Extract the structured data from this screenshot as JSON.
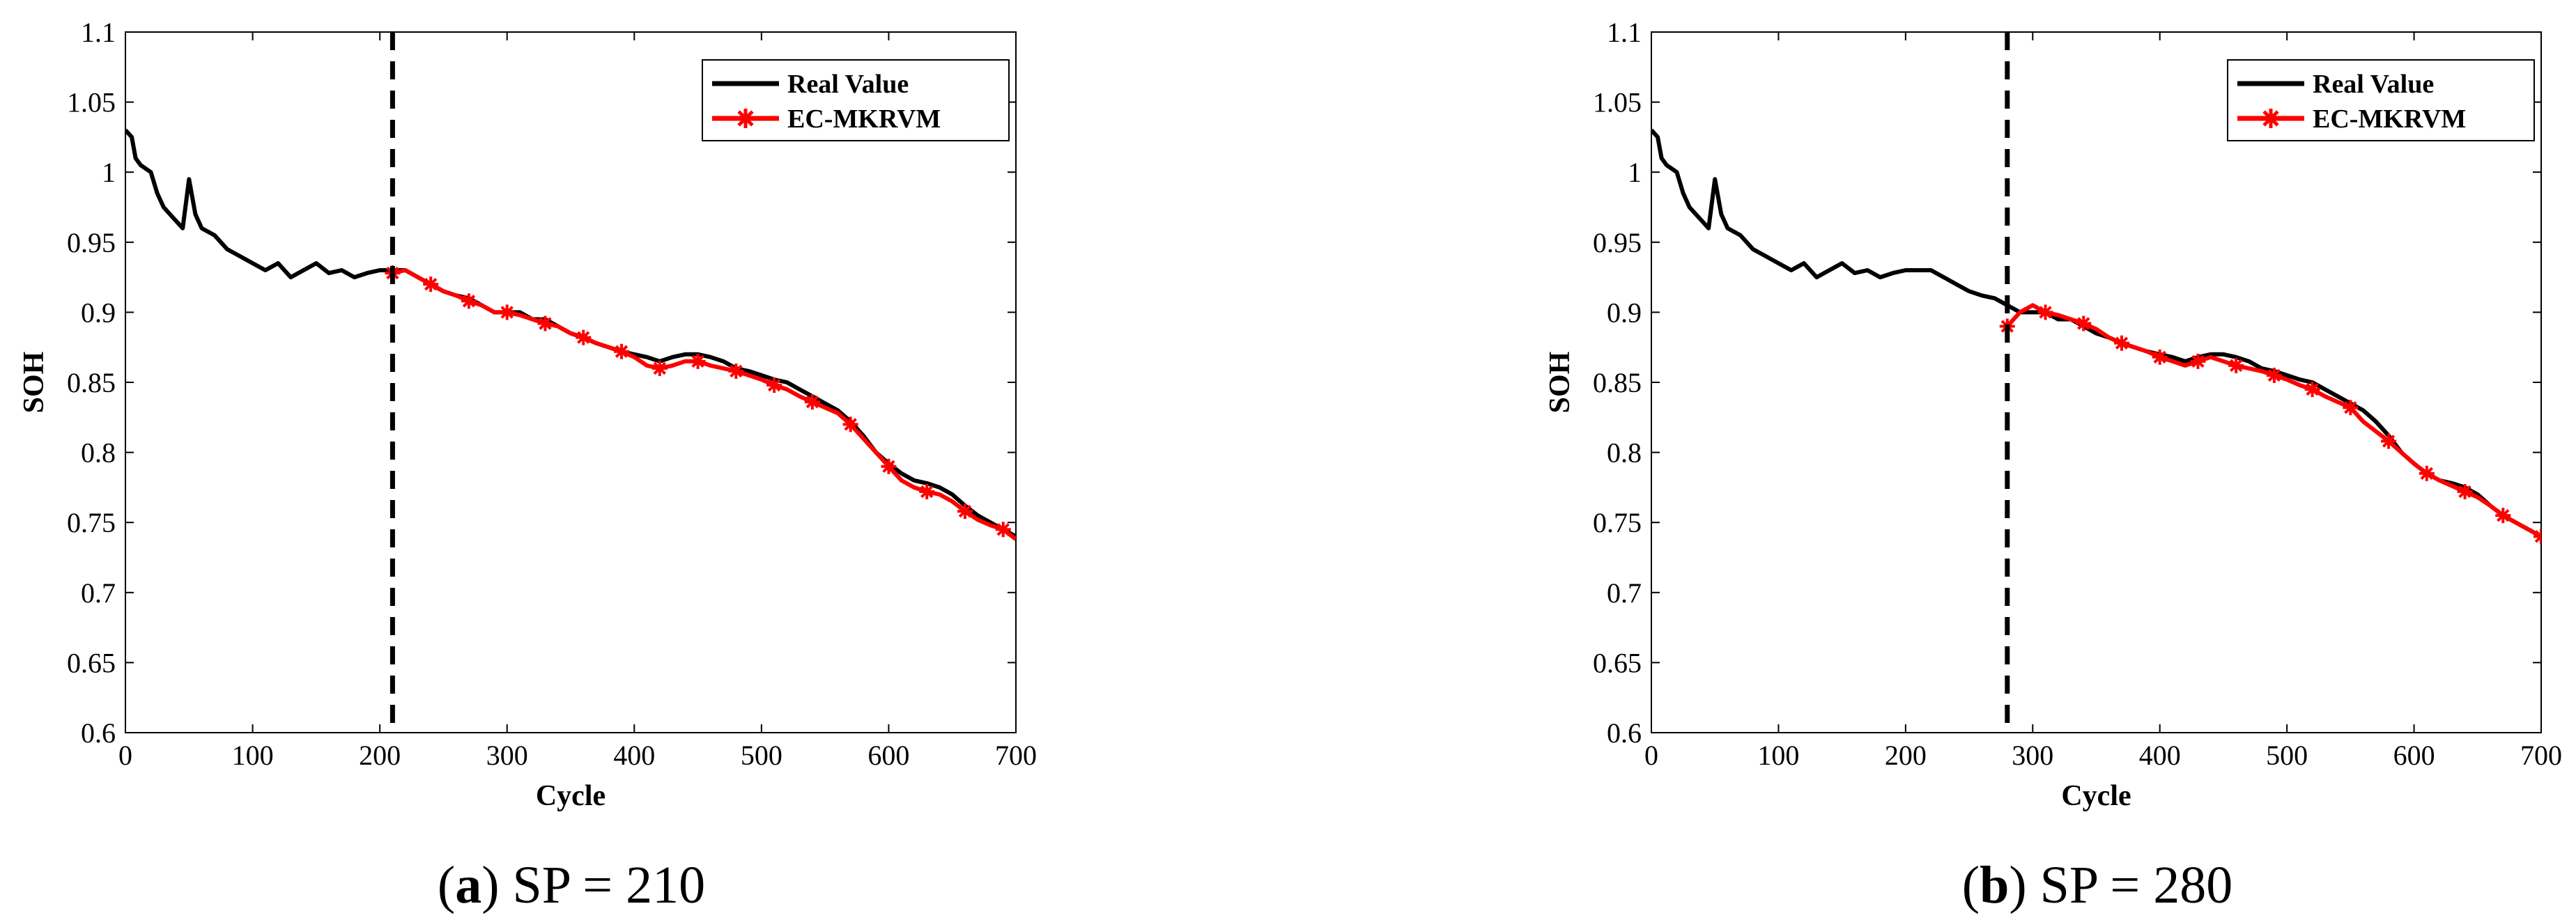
{
  "chart_data": [
    {
      "type": "line",
      "caption": {
        "open": "(",
        "letter": "a",
        "close": ")",
        "text": " SP = 210"
      },
      "xlabel": "Cycle",
      "ylabel": "SOH",
      "xlim": [
        0,
        700
      ],
      "ylim": [
        0.6,
        1.1
      ],
      "xticks": [
        "0",
        "100",
        "200",
        "300",
        "400",
        "500",
        "600",
        "700"
      ],
      "yticks": [
        "0.6",
        "0.65",
        "0.7",
        "0.75",
        "0.8",
        "0.85",
        "0.9",
        "0.95",
        "1",
        "1.05",
        "1.1"
      ],
      "start_point": 210,
      "legend": {
        "placement": "top-right",
        "entries": [
          "Real Value",
          "EC-MKRVM"
        ]
      },
      "series": [
        {
          "name": "Real Value",
          "color": "#000000",
          "x": [
            0,
            5,
            8,
            12,
            20,
            25,
            30,
            35,
            40,
            45,
            50,
            55,
            60,
            70,
            80,
            90,
            100,
            110,
            120,
            130,
            140,
            150,
            160,
            170,
            180,
            190,
            200,
            210,
            220,
            230,
            240,
            250,
            260,
            270,
            280,
            290,
            300,
            310,
            320,
            330,
            340,
            350,
            360,
            370,
            380,
            390,
            400,
            410,
            420,
            430,
            440,
            450,
            460,
            470,
            480,
            490,
            500,
            510,
            520,
            530,
            540,
            550,
            560,
            570,
            580,
            590,
            600,
            610,
            620,
            630,
            640,
            650,
            660,
            670,
            680,
            690,
            700
          ],
          "y": [
            1.03,
            1.025,
            1.01,
            1.005,
            1.0,
            0.985,
            0.975,
            0.97,
            0.965,
            0.96,
            0.995,
            0.97,
            0.96,
            0.955,
            0.945,
            0.94,
            0.935,
            0.93,
            0.935,
            0.925,
            0.93,
            0.935,
            0.928,
            0.93,
            0.925,
            0.928,
            0.93,
            0.93,
            0.93,
            0.925,
            0.92,
            0.915,
            0.912,
            0.91,
            0.905,
            0.9,
            0.9,
            0.9,
            0.895,
            0.895,
            0.89,
            0.885,
            0.882,
            0.878,
            0.875,
            0.872,
            0.87,
            0.868,
            0.865,
            0.868,
            0.87,
            0.87,
            0.868,
            0.865,
            0.86,
            0.858,
            0.855,
            0.852,
            0.85,
            0.845,
            0.84,
            0.835,
            0.83,
            0.822,
            0.812,
            0.8,
            0.792,
            0.785,
            0.78,
            0.778,
            0.775,
            0.77,
            0.762,
            0.755,
            0.75,
            0.745,
            0.74
          ]
        },
        {
          "name": "EC-MKRVM",
          "color": "#ff0000",
          "x": [
            210,
            220,
            230,
            240,
            250,
            260,
            270,
            280,
            290,
            300,
            310,
            320,
            330,
            340,
            350,
            360,
            370,
            380,
            390,
            400,
            410,
            420,
            430,
            440,
            450,
            460,
            470,
            480,
            490,
            500,
            510,
            520,
            530,
            540,
            550,
            560,
            570,
            580,
            590,
            600,
            610,
            620,
            630,
            640,
            650,
            660,
            670,
            680,
            690,
            700
          ],
          "y": [
            0.928,
            0.93,
            0.925,
            0.92,
            0.915,
            0.912,
            0.908,
            0.905,
            0.9,
            0.9,
            0.898,
            0.895,
            0.892,
            0.89,
            0.885,
            0.882,
            0.878,
            0.875,
            0.872,
            0.868,
            0.862,
            0.86,
            0.862,
            0.865,
            0.865,
            0.862,
            0.86,
            0.858,
            0.855,
            0.852,
            0.848,
            0.845,
            0.84,
            0.836,
            0.832,
            0.828,
            0.82,
            0.81,
            0.8,
            0.79,
            0.78,
            0.775,
            0.772,
            0.77,
            0.765,
            0.758,
            0.752,
            0.748,
            0.745,
            0.738
          ]
        }
      ]
    },
    {
      "type": "line",
      "caption": {
        "open": "(",
        "letter": "b",
        "close": ")",
        "text": " SP = 280"
      },
      "xlabel": "Cycle",
      "ylabel": "SOH",
      "xlim": [
        0,
        700
      ],
      "ylim": [
        0.6,
        1.1
      ],
      "xticks": [
        "0",
        "100",
        "200",
        "300",
        "400",
        "500",
        "600",
        "700"
      ],
      "yticks": [
        "0.6",
        "0.65",
        "0.7",
        "0.75",
        "0.8",
        "0.85",
        "0.9",
        "0.95",
        "1",
        "1.05",
        "1.1"
      ],
      "start_point": 280,
      "legend": {
        "placement": "top-right",
        "entries": [
          "Real Value",
          "EC-MKRVM"
        ]
      },
      "series": [
        {
          "name": "Real Value",
          "color": "#000000",
          "x": [
            0,
            5,
            8,
            12,
            20,
            25,
            30,
            35,
            40,
            45,
            50,
            55,
            60,
            70,
            80,
            90,
            100,
            110,
            120,
            130,
            140,
            150,
            160,
            170,
            180,
            190,
            200,
            210,
            220,
            230,
            240,
            250,
            260,
            270,
            280,
            290,
            300,
            310,
            320,
            330,
            340,
            350,
            360,
            370,
            380,
            390,
            400,
            410,
            420,
            430,
            440,
            450,
            460,
            470,
            480,
            490,
            500,
            510,
            520,
            530,
            540,
            550,
            560,
            570,
            580,
            590,
            600,
            610,
            620,
            630,
            640,
            650,
            660,
            670,
            680,
            690,
            700
          ],
          "y": [
            1.03,
            1.025,
            1.01,
            1.005,
            1.0,
            0.985,
            0.975,
            0.97,
            0.965,
            0.96,
            0.995,
            0.97,
            0.96,
            0.955,
            0.945,
            0.94,
            0.935,
            0.93,
            0.935,
            0.925,
            0.93,
            0.935,
            0.928,
            0.93,
            0.925,
            0.928,
            0.93,
            0.93,
            0.93,
            0.925,
            0.92,
            0.915,
            0.912,
            0.91,
            0.905,
            0.9,
            0.9,
            0.9,
            0.895,
            0.895,
            0.89,
            0.885,
            0.882,
            0.878,
            0.875,
            0.872,
            0.87,
            0.868,
            0.865,
            0.868,
            0.87,
            0.87,
            0.868,
            0.865,
            0.86,
            0.858,
            0.855,
            0.852,
            0.85,
            0.845,
            0.84,
            0.835,
            0.83,
            0.822,
            0.812,
            0.8,
            0.792,
            0.785,
            0.78,
            0.778,
            0.775,
            0.77,
            0.762,
            0.755,
            0.75,
            0.745,
            0.74
          ]
        },
        {
          "name": "EC-MKRVM",
          "color": "#ff0000",
          "x": [
            280,
            290,
            300,
            310,
            320,
            330,
            340,
            350,
            360,
            370,
            380,
            390,
            400,
            410,
            420,
            430,
            440,
            450,
            460,
            470,
            480,
            490,
            500,
            510,
            520,
            530,
            540,
            550,
            560,
            570,
            580,
            590,
            600,
            610,
            620,
            630,
            640,
            650,
            660,
            670,
            680,
            690,
            700
          ],
          "y": [
            0.89,
            0.9,
            0.905,
            0.9,
            0.898,
            0.895,
            0.892,
            0.888,
            0.882,
            0.878,
            0.875,
            0.872,
            0.868,
            0.865,
            0.862,
            0.865,
            0.868,
            0.865,
            0.862,
            0.86,
            0.858,
            0.855,
            0.852,
            0.848,
            0.845,
            0.84,
            0.836,
            0.832,
            0.822,
            0.815,
            0.808,
            0.8,
            0.792,
            0.785,
            0.78,
            0.776,
            0.772,
            0.768,
            0.762,
            0.755,
            0.75,
            0.745,
            0.74
          ]
        }
      ]
    }
  ]
}
